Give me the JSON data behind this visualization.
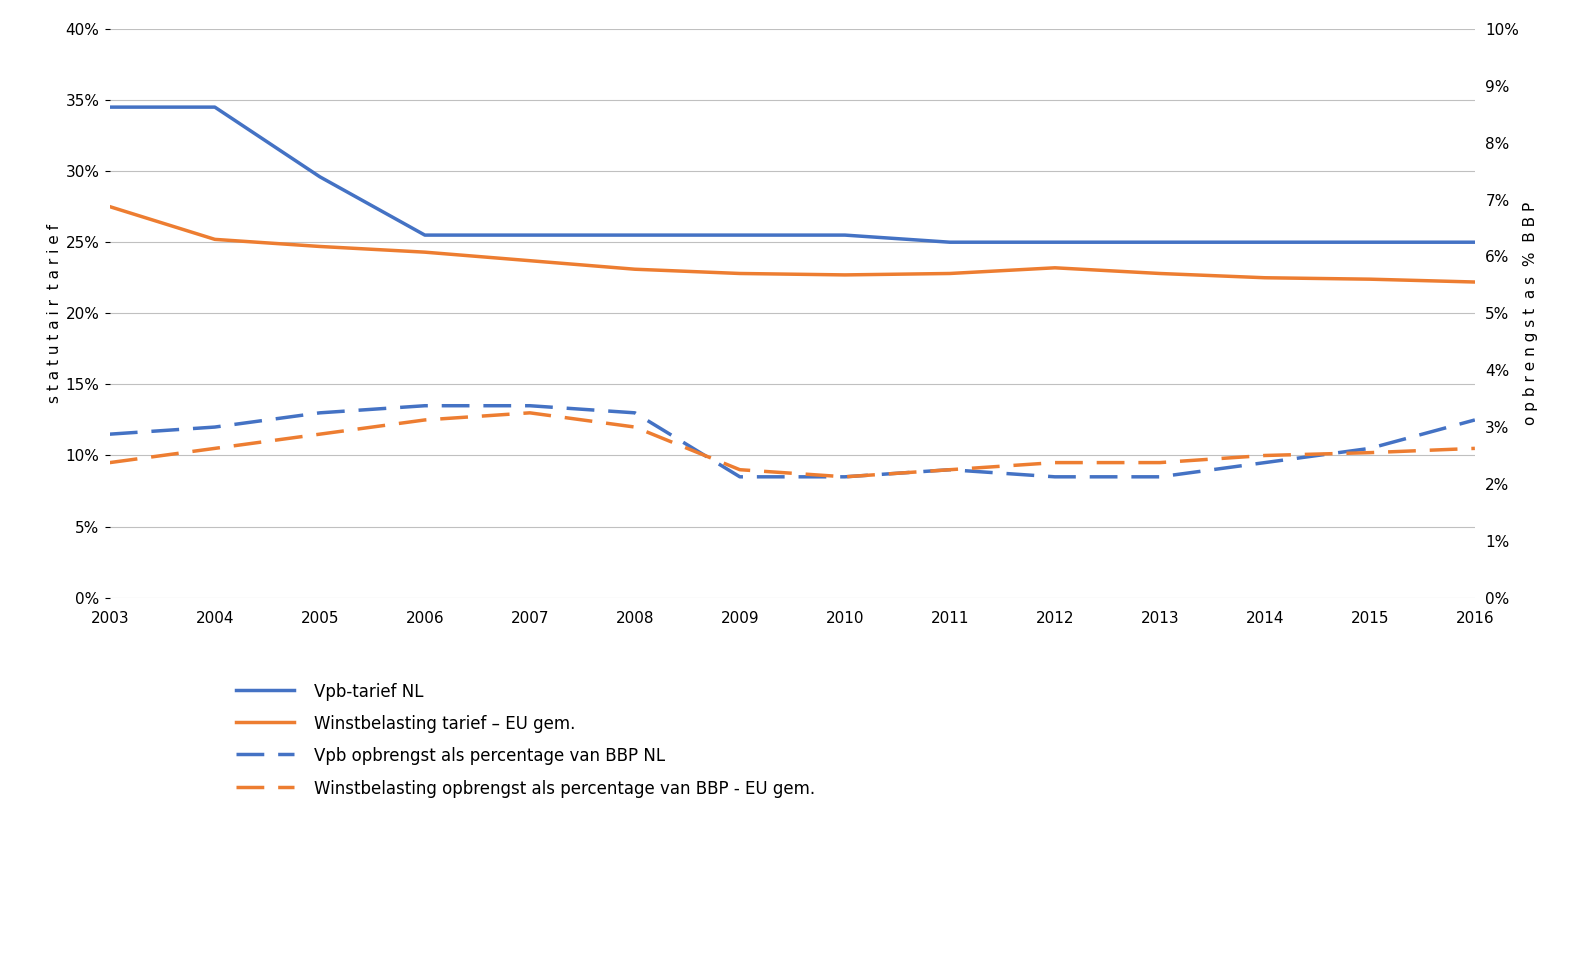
{
  "years": [
    2003,
    2004,
    2005,
    2006,
    2007,
    2008,
    2009,
    2010,
    2011,
    2012,
    2013,
    2014,
    2015,
    2016
  ],
  "vpb_tarief_nl": [
    0.345,
    0.345,
    0.296,
    0.255,
    0.255,
    0.255,
    0.255,
    0.255,
    0.25,
    0.25,
    0.25,
    0.25,
    0.25,
    0.25
  ],
  "eu_gem_tarief": [
    0.275,
    0.252,
    0.247,
    0.243,
    0.237,
    0.231,
    0.228,
    0.227,
    0.228,
    0.232,
    0.228,
    0.225,
    0.224,
    0.222
  ],
  "vpb_opbrengst_nl": [
    0.115,
    0.12,
    0.13,
    0.135,
    0.135,
    0.13,
    0.085,
    0.085,
    0.09,
    0.085,
    0.085,
    0.095,
    0.105,
    0.125
  ],
  "eu_gem_opbrengst": [
    0.095,
    0.105,
    0.115,
    0.125,
    0.13,
    0.12,
    0.09,
    0.085,
    0.09,
    0.095,
    0.095,
    0.1,
    0.102,
    0.105
  ],
  "color_blue": "#4472C4",
  "color_orange": "#ED7D31",
  "left_ylim": [
    0.0,
    0.4
  ],
  "right_ylim": [
    0.0,
    0.1
  ],
  "left_yticks": [
    0.0,
    0.05,
    0.1,
    0.15,
    0.2,
    0.25,
    0.3,
    0.35,
    0.4
  ],
  "right_yticks": [
    0.0,
    0.01,
    0.02,
    0.03,
    0.04,
    0.05,
    0.06,
    0.07,
    0.08,
    0.09,
    0.1
  ],
  "left_ylabel": "s t a t u t a i r  t a r i e f",
  "right_ylabel": "o p b r e n g s t  a s  %  B B P",
  "legend_labels": [
    "Vpb-tarief NL",
    "Winstbelasting tarief – EU gem.",
    "Vpb opbrengst als percentage van BBP NL",
    "Winstbelasting opbrengst als percentage van BBP - EU gem."
  ],
  "background_color": "#ffffff",
  "grid_color": "#c0c0c0",
  "linewidth": 2.5,
  "dash_pattern": [
    8,
    4
  ],
  "legend_fontsize": 12,
  "tick_fontsize": 11,
  "ylabel_fontsize": 11
}
